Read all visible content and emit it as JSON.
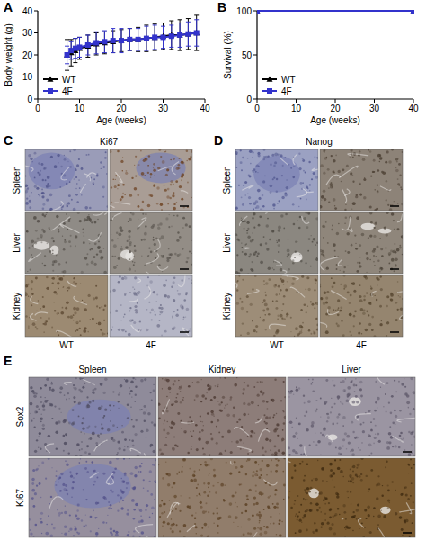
{
  "chart_data": [
    {
      "label": "A",
      "type": "line",
      "x_label": "Age (weeks)",
      "y_label": "Body weight (g)",
      "x": [
        7,
        8,
        9,
        10,
        12,
        14,
        16,
        18,
        20,
        22,
        24,
        26,
        28,
        30,
        32,
        34,
        36,
        38
      ],
      "series": [
        {
          "name": "WT",
          "color": "#000000",
          "marker": "triangle",
          "values": [
            20,
            21,
            22,
            23,
            24,
            25,
            25.5,
            26,
            26.5,
            27,
            27,
            27.5,
            28,
            28.5,
            29,
            29,
            29.5,
            30
          ],
          "errors": [
            7,
            6,
            5.5,
            5,
            5,
            5,
            5,
            5,
            5,
            5,
            5.5,
            6,
            6,
            6,
            6.5,
            7,
            7,
            8
          ]
        },
        {
          "name": "4F",
          "color": "#3333cc",
          "marker": "square",
          "values": [
            20,
            22,
            23,
            23.5,
            24.5,
            25.5,
            26,
            26.5,
            26.5,
            27,
            27,
            27.5,
            28,
            28,
            28.5,
            29,
            29.5,
            30
          ],
          "errors": [
            4,
            4,
            4.5,
            4.5,
            4.5,
            5,
            5,
            5.5,
            5.5,
            5,
            5,
            5.5,
            5.5,
            5,
            5,
            5.5,
            5.5,
            6
          ]
        }
      ],
      "xlim": [
        0,
        40
      ],
      "ylim": [
        0,
        40
      ],
      "xticks": [
        0,
        10,
        20,
        30,
        40
      ],
      "yticks": [
        0,
        10,
        20,
        30,
        40
      ],
      "legend": "lower left"
    },
    {
      "label": "B",
      "type": "line",
      "x_label": "Age (weeks)",
      "y_label": "Survival (%)",
      "x": [
        0,
        40
      ],
      "series": [
        {
          "name": "WT",
          "color": "#000000",
          "marker": "triangle",
          "values": [
            100,
            100
          ]
        },
        {
          "name": "4F",
          "color": "#3333cc",
          "marker": "square",
          "values": [
            100,
            100
          ]
        }
      ],
      "xlim": [
        0,
        40
      ],
      "ylim": [
        0,
        100
      ],
      "xticks": [
        0,
        10,
        20,
        30,
        40
      ],
      "yticks": [
        0,
        50,
        100
      ],
      "legend": "lower left"
    }
  ],
  "image_panels": [
    {
      "label": "C",
      "title": "Ki67",
      "rows": [
        "Spleen",
        "Liver",
        "Kidney"
      ],
      "columns": [
        "WT",
        "4F"
      ]
    },
    {
      "label": "D",
      "title": "Nanog",
      "rows": [
        "Spleen",
        "Liver",
        "Kidney"
      ],
      "columns": [
        "WT",
        "4F"
      ]
    },
    {
      "label": "E",
      "rows": [
        "Sox2",
        "Ki67"
      ],
      "columns": [
        "Spleen",
        "Kidney",
        "Liver"
      ]
    }
  ]
}
